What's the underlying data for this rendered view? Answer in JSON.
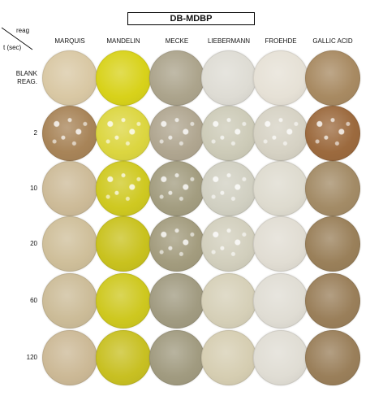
{
  "title": "DB-MDBP",
  "corner": {
    "reagent_label": "reag",
    "time_label": "t (sec)"
  },
  "columns": [
    {
      "id": "marquis",
      "label": "MARQUIS"
    },
    {
      "id": "mandelin",
      "label": "MANDELIN"
    },
    {
      "id": "mecke",
      "label": "MECKE"
    },
    {
      "id": "liebermann",
      "label": "LIEBERMANN"
    },
    {
      "id": "froehde",
      "label": "FROEHDE"
    },
    {
      "id": "gallic-acid",
      "label": "GALLIC ACID"
    }
  ],
  "rows": [
    {
      "id": "blank",
      "label": "BLANK\nREAG.",
      "colors": [
        "#d9c8a4",
        "#d8d21a",
        "#aca48c",
        "#dedcd4",
        "#e6e1d6",
        "#a88a62"
      ],
      "speckled": [
        false,
        false,
        false,
        false,
        false,
        false
      ]
    },
    {
      "id": "2",
      "label": "2",
      "colors": [
        "#a88458",
        "#dcd640",
        "#b0a690",
        "#cdcbb8",
        "#d6d2c4",
        "#9c6a3e"
      ],
      "speckled": [
        true,
        true,
        true,
        true,
        true,
        true
      ]
    },
    {
      "id": "10",
      "label": "10",
      "colors": [
        "#cdbb98",
        "#cfc921",
        "#a39d80",
        "#d1d0c2",
        "#dedbcf",
        "#a38b66"
      ],
      "speckled": [
        false,
        true,
        true,
        true,
        false,
        false
      ]
    },
    {
      "id": "20",
      "label": "20",
      "colors": [
        "#cfbf9a",
        "#c9c21e",
        "#a39c7e",
        "#d2cfbd",
        "#e1ddd3",
        "#9a805a"
      ],
      "speckled": [
        false,
        false,
        true,
        true,
        false,
        false
      ]
    },
    {
      "id": "60",
      "label": "60",
      "colors": [
        "#ccbc98",
        "#cec81f",
        "#a19b81",
        "#d6d0b8",
        "#e0ddd4",
        "#9a7f5a"
      ],
      "speckled": [
        false,
        false,
        false,
        false,
        false,
        false
      ]
    },
    {
      "id": "120",
      "label": "120",
      "colors": [
        "#ccb996",
        "#c8c022",
        "#a19b80",
        "#d6ceb2",
        "#e0ddd4",
        "#9a7f5a"
      ],
      "speckled": [
        false,
        false,
        false,
        false,
        false,
        false
      ]
    }
  ]
}
